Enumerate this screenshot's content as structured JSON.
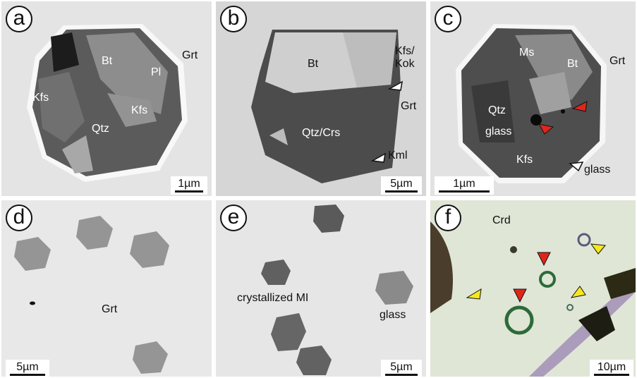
{
  "panels": {
    "a": {
      "letter": "a",
      "labels": {
        "bt": "Bt",
        "grt": "Grt",
        "pl": "Pl",
        "kfs1": "Kfs",
        "kfs2": "Kfs",
        "qtz": "Qtz"
      },
      "scale": "1µm"
    },
    "b": {
      "letter": "b",
      "labels": {
        "bt": "Bt",
        "kfs_kok": "Kfs/\nKok",
        "grt": "Grt",
        "qtz_crs": "Qtz/Crs",
        "kml": "Kml"
      },
      "scale": "5µm"
    },
    "c": {
      "letter": "c",
      "labels": {
        "ms": "Ms",
        "bt": "Bt",
        "grt": "Grt",
        "qtz": "Qtz",
        "glass1": "glass",
        "kfs": "Kfs",
        "glass2": "glass"
      },
      "scale": "1µm"
    },
    "d": {
      "letter": "d",
      "labels": {
        "grt": "Grt"
      },
      "scale": "5µm"
    },
    "e": {
      "letter": "e",
      "labels": {
        "crystallized": "crystallized MI",
        "glass": "glass"
      },
      "scale": "5µm"
    },
    "f": {
      "letter": "f",
      "labels": {
        "crd": "Crd"
      },
      "scale": "10µm"
    }
  },
  "colors": {
    "red_arrow": "#e0261b",
    "yellow_arrow": "#f5e81e",
    "white_arrow": "#ffffff"
  },
  "icons": [
    "arrowhead-red",
    "arrowhead-yellow",
    "arrowhead-white"
  ]
}
